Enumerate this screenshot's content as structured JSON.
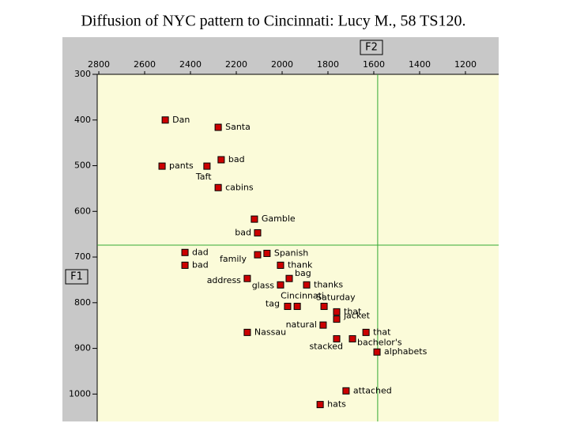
{
  "chart_data": {
    "type": "scatter",
    "title": "Diffusion of NYC pattern to Cincinnati: Lucy M., 58 TS120.",
    "x_label": "F2",
    "y_label": "F1",
    "xlim": [
      2807,
      1055
    ],
    "ylim": [
      1060,
      300
    ],
    "xticks": [
      2800,
      2600,
      2400,
      2200,
      2000,
      1800,
      1600,
      1400,
      1200
    ],
    "yticks": [
      300,
      400,
      500,
      600,
      700,
      800,
      900,
      1000
    ],
    "reference_lines": {
      "x": 1583,
      "y": 674,
      "color": "#33aa33"
    },
    "color": "#cc0000",
    "points": [
      {
        "label": "Dan",
        "x": 2510,
        "y": 400
      },
      {
        "label": "Santa",
        "x": 2279,
        "y": 416
      },
      {
        "label": "bad",
        "x": 2266,
        "y": 487
      },
      {
        "label": "pants",
        "x": 2524,
        "y": 501
      },
      {
        "label": "Taft",
        "x": 2328,
        "y": 501
      },
      {
        "label": "cabins",
        "x": 2279,
        "y": 548
      },
      {
        "label": "Gamble",
        "x": 2121,
        "y": 617
      },
      {
        "label": "bad",
        "x": 2107,
        "y": 647
      },
      {
        "label": "dad",
        "x": 2424,
        "y": 690
      },
      {
        "label": "bad",
        "x": 2424,
        "y": 718
      },
      {
        "label": "Spanish",
        "x": 2066,
        "y": 692
      },
      {
        "label": "family",
        "x": 2107,
        "y": 695
      },
      {
        "label": "thank",
        "x": 2007,
        "y": 718
      },
      {
        "label": "bag",
        "x": 1969,
        "y": 747
      },
      {
        "label": "thanks",
        "x": 1893,
        "y": 761
      },
      {
        "label": "glass",
        "x": 2007,
        "y": 761
      },
      {
        "label": "address",
        "x": 2152,
        "y": 747
      },
      {
        "label": "tag",
        "x": 1976,
        "y": 808
      },
      {
        "label": "Cincinnati",
        "x": 1934,
        "y": 808
      },
      {
        "label": "Saturday",
        "x": 1817,
        "y": 808
      },
      {
        "label": "that",
        "x": 1762,
        "y": 820
      },
      {
        "label": "jacket",
        "x": 1762,
        "y": 836
      },
      {
        "label": "natural",
        "x": 1821,
        "y": 849
      },
      {
        "label": "stacked",
        "x": 1762,
        "y": 879
      },
      {
        "label": "that",
        "x": 1634,
        "y": 865
      },
      {
        "label": "bachelor's",
        "x": 1693,
        "y": 879
      },
      {
        "label": "Nassau",
        "x": 2152,
        "y": 865
      },
      {
        "label": "alphabets",
        "x": 1586,
        "y": 908
      },
      {
        "label": "attached",
        "x": 1721,
        "y": 993
      },
      {
        "label": "hats",
        "x": 1834,
        "y": 1023
      }
    ]
  }
}
